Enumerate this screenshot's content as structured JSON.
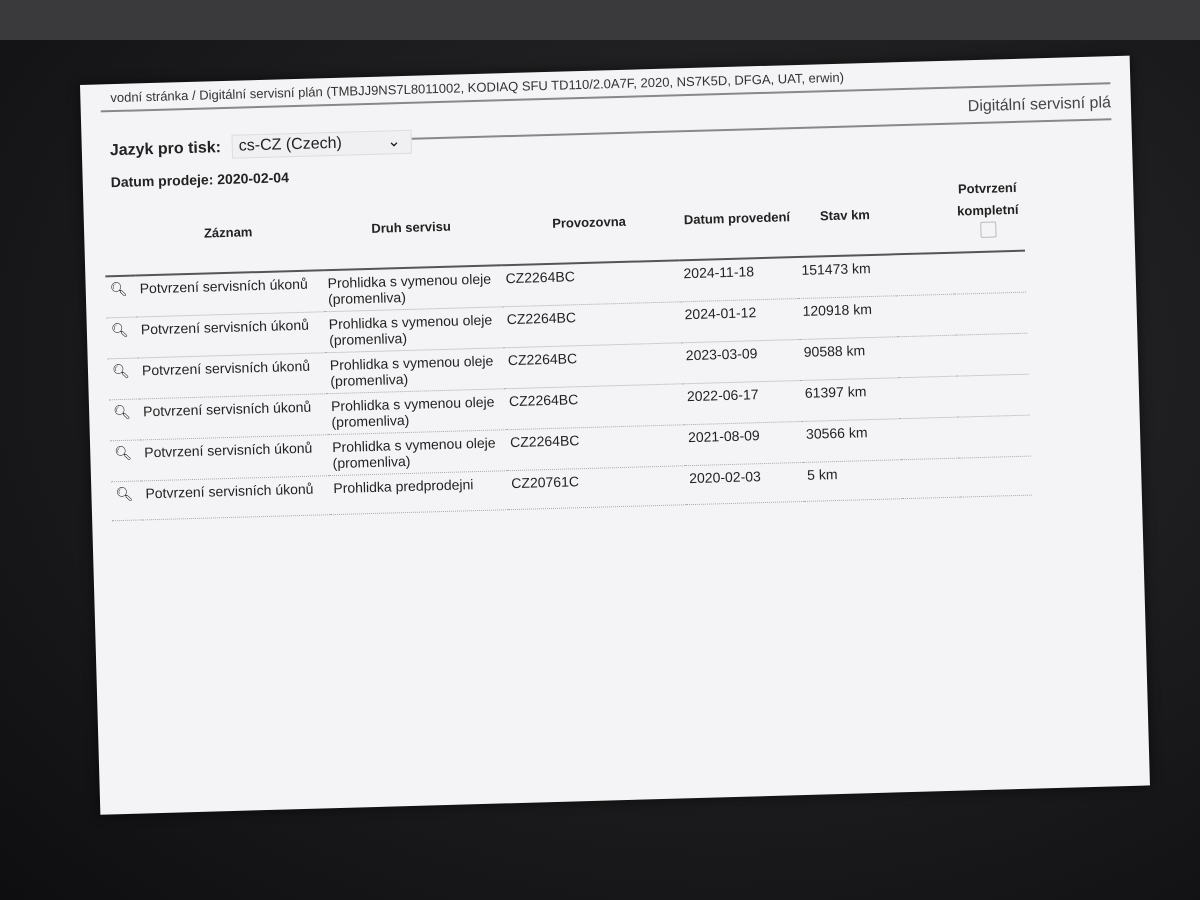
{
  "header": {
    "breadcrumb": "vodní stránka / Digitální servisní plán (TMBJJ9NS7L8011002, KODIAQ SFU TD110/2.0A7F, 2020, NS7K5D, DFGA, UAT, erwin)",
    "doc_title": "Digitální servisní plá",
    "language_label": "Jazyk pro tisk:",
    "language_value": "cs-CZ (Czech)",
    "sale_date": "Datum prodeje: 2020-02-04"
  },
  "table": {
    "columns": [
      "Záznam",
      "Druh servisu",
      "Provozovna",
      "Datum provedení",
      "Stav km",
      "Potvrzení kompletní"
    ],
    "rows": [
      {
        "record": "Potvrzení servisních úkonů",
        "service": "Prohlidka s vymenou oleje (promenliva)",
        "workshop": "CZ2264BC",
        "date": "2024-11-18",
        "km": "151473 km"
      },
      {
        "record": "Potvrzení servisních úkonů",
        "service": "Prohlidka s vymenou oleje (promenliva)",
        "workshop": "CZ2264BC",
        "date": "2024-01-12",
        "km": "120918 km"
      },
      {
        "record": "Potvrzení servisních úkonů",
        "service": "Prohlidka s vymenou oleje (promenliva)",
        "workshop": "CZ2264BC",
        "date": "2023-03-09",
        "km": "90588 km"
      },
      {
        "record": "Potvrzení servisních úkonů",
        "service": "Prohlidka s vymenou oleje (promenliva)",
        "workshop": "CZ2264BC",
        "date": "2022-06-17",
        "km": "61397 km"
      },
      {
        "record": "Potvrzení servisních úkonů",
        "service": "Prohlidka s vymenou oleje (promenliva)",
        "workshop": "CZ2264BC",
        "date": "2021-08-09",
        "km": "30566 km"
      },
      {
        "record": "Potvrzení servisních úkonů",
        "service": "Prohlidka predprodejni",
        "workshop": "CZ20761C",
        "date": "2020-02-03",
        "km": "5 km"
      }
    ]
  }
}
